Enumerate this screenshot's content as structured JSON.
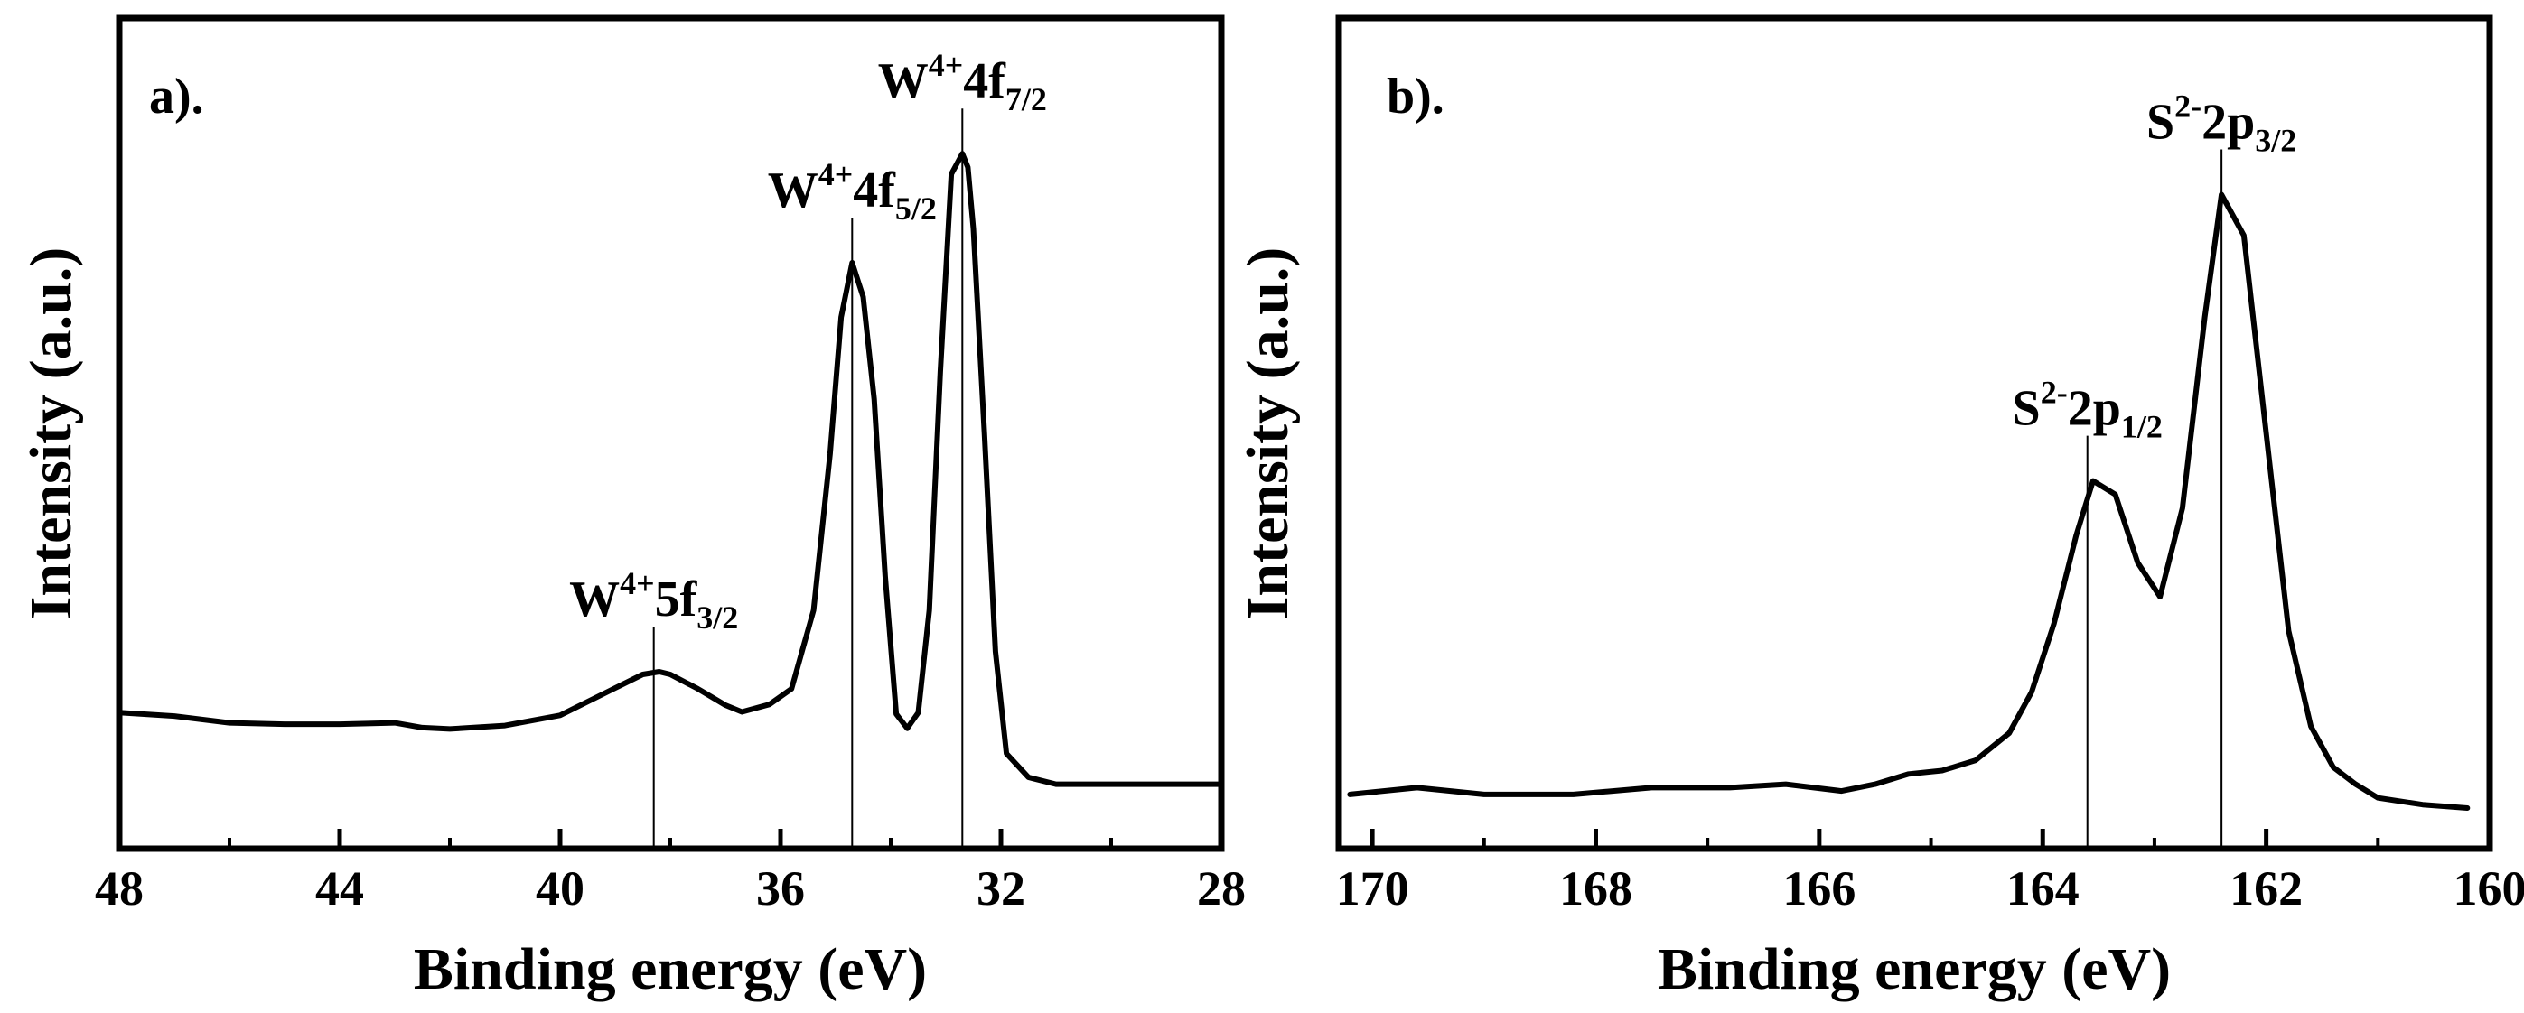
{
  "chart_data": [
    {
      "type": "line",
      "panel_label": "a).",
      "xlabel": "Binding energy (eV)",
      "ylabel": "Intensity (a.u.)",
      "xlim": [
        48,
        28
      ],
      "ylim": [
        0,
        1
      ],
      "x_ticks": [
        48,
        44,
        40,
        36,
        32,
        28
      ],
      "x_minor_ticks": [
        46,
        42,
        38,
        34,
        30
      ],
      "series": [
        {
          "name": "W 4f",
          "x": [
            48,
            47,
            46,
            45,
            44,
            43,
            42.5,
            42,
            41,
            40,
            39.5,
            39,
            38.5,
            38.2,
            38,
            37.5,
            37,
            36.7,
            36.2,
            35.8,
            35.4,
            35.1,
            34.9,
            34.7,
            34.5,
            34.3,
            34.1,
            33.9,
            33.7,
            33.5,
            33.3,
            33.1,
            32.9,
            32.7,
            32.6,
            32.5,
            32.3,
            32.1,
            31.9,
            31.5,
            31,
            30,
            29,
            28
          ],
          "values": [
            0.14,
            0.135,
            0.125,
            0.123,
            0.123,
            0.125,
            0.118,
            0.116,
            0.121,
            0.136,
            0.156,
            0.176,
            0.196,
            0.2,
            0.196,
            0.175,
            0.151,
            0.141,
            0.152,
            0.175,
            0.29,
            0.52,
            0.72,
            0.8,
            0.75,
            0.6,
            0.34,
            0.138,
            0.117,
            0.14,
            0.29,
            0.64,
            0.93,
            0.96,
            0.94,
            0.85,
            0.55,
            0.23,
            0.08,
            0.045,
            0.035,
            0.035,
            0.035,
            0.035
          ]
        }
      ],
      "annotations": [
        {
          "x": 38.3,
          "value": 0.2,
          "text": "W",
          "sup": "4+",
          "core": "5f",
          "sub": "3/2"
        },
        {
          "x": 34.7,
          "value": 0.8,
          "text": "W",
          "sup": "4+",
          "core": "4f",
          "sub": "5/2"
        },
        {
          "x": 32.7,
          "value": 0.96,
          "text": "W",
          "sup": "4+",
          "core": "4f",
          "sub": "7/2"
        }
      ]
    },
    {
      "type": "line",
      "panel_label": "b).",
      "xlabel": "Binding energy (eV)",
      "ylabel": "Intensity (a.u.)",
      "xlim": [
        170.3,
        160
      ],
      "ylim": [
        0,
        1
      ],
      "x_ticks": [
        170,
        168,
        166,
        164,
        162,
        160
      ],
      "x_minor_ticks": [
        169,
        167,
        165,
        163,
        161
      ],
      "series": [
        {
          "name": "S 2p",
          "x": [
            170.2,
            169.6,
            169,
            168.2,
            167.5,
            166.8,
            166.3,
            165.8,
            165.5,
            165.2,
            164.9,
            164.6,
            164.3,
            164.1,
            163.9,
            163.7,
            163.55,
            163.35,
            163.15,
            162.95,
            162.75,
            162.55,
            162.4,
            162.2,
            162.0,
            161.8,
            161.6,
            161.4,
            161.2,
            161.0,
            160.6,
            160.2
          ],
          "values": [
            0.02,
            0.03,
            0.02,
            0.02,
            0.03,
            0.03,
            0.035,
            0.025,
            0.035,
            0.05,
            0.055,
            0.07,
            0.11,
            0.17,
            0.27,
            0.4,
            0.48,
            0.46,
            0.36,
            0.31,
            0.44,
            0.72,
            0.9,
            0.84,
            0.55,
            0.26,
            0.12,
            0.06,
            0.035,
            0.015,
            0.005,
            0.0
          ]
        }
      ],
      "annotations": [
        {
          "x": 163.6,
          "value": 0.48,
          "text": "S",
          "sup": "2-",
          "core": "2p",
          "sub": "1/2"
        },
        {
          "x": 162.4,
          "value": 0.9,
          "text": "S",
          "sup": "2-",
          "core": "2p",
          "sub": "3/2"
        }
      ]
    }
  ]
}
